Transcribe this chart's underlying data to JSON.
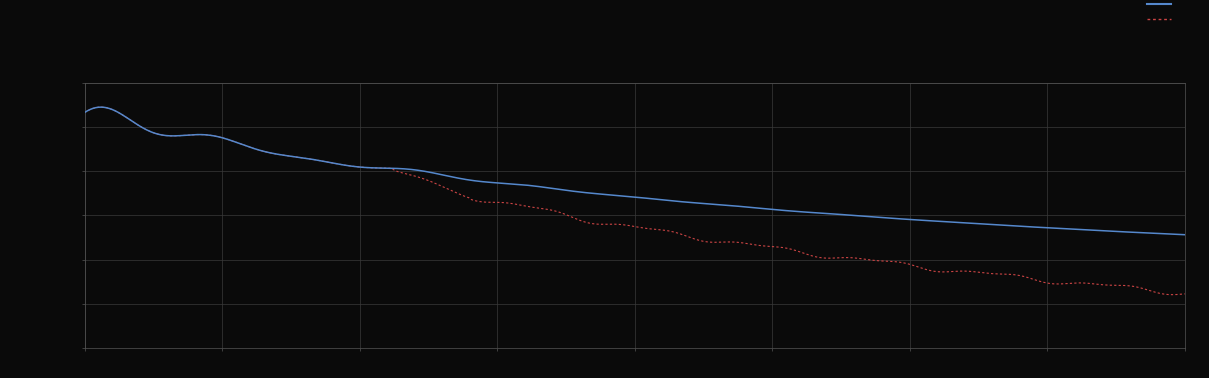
{
  "background_color": "#0a0a0a",
  "plot_bg_color": "#0a0a0a",
  "grid_color": "#3a3a3a",
  "axis_color": "#555555",
  "tick_color": "#555555",
  "line1_color": "#5588CC",
  "line2_color": "#CC4444",
  "figsize": [
    12.09,
    3.78
  ],
  "dpi": 100,
  "ylim": [
    0,
    1
  ],
  "n_points": 800,
  "n_xticks": 8,
  "n_yticks": 6
}
